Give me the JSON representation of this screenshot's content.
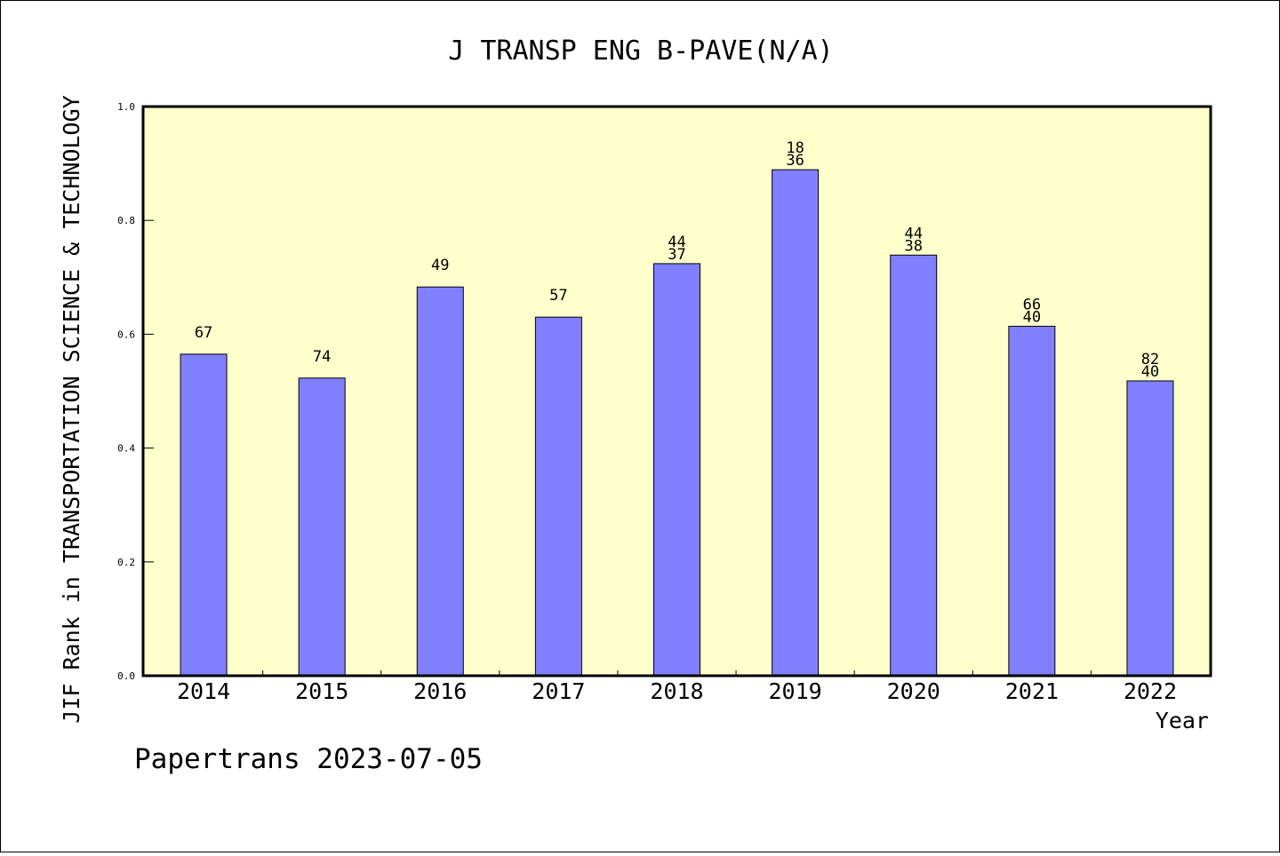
{
  "chart_data": {
    "type": "bar",
    "title": "J TRANSP ENG B-PAVE(N/A)",
    "ylabel": "JIF Rank in TRANSPORTATION SCIENCE & TECHNOLOGY",
    "xlabel": "Year",
    "categories": [
      "2014",
      "2015",
      "2016",
      "2017",
      "2018",
      "2019",
      "2020",
      "2021",
      "2022"
    ],
    "values": [
      0.565,
      0.523,
      0.683,
      0.63,
      0.724,
      0.889,
      0.739,
      0.614,
      0.518
    ],
    "labels_top": [
      "67",
      "74",
      "49",
      "57",
      "44",
      "18",
      "44",
      "66",
      "82"
    ],
    "labels_bottom": [
      "",
      "",
      "",
      "",
      "37",
      "36",
      "38",
      "40",
      "40"
    ],
    "ylim": [
      0,
      1.0
    ],
    "yticks": [
      "0.0",
      "0.2",
      "0.4",
      "0.6",
      "0.8",
      "1.0"
    ],
    "grid": false,
    "colors": {
      "bar": "#8080ff",
      "plot_background": "#ffffcc",
      "outline": "#000000"
    }
  },
  "footer": "Papertrans 2023-07-05"
}
